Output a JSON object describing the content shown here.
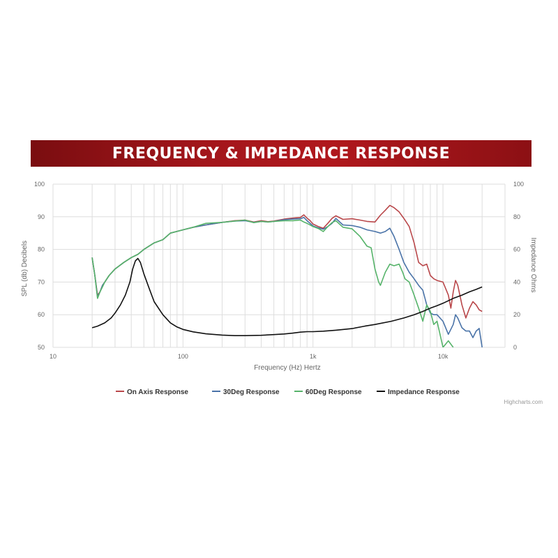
{
  "banner": {
    "title": "FREQUENCY & IMPEDANCE RESPONSE",
    "color": "#a3161b"
  },
  "chart_data": {
    "type": "line",
    "xlabel": "Frequency (Hz) Hertz",
    "ylabel": "SPL (db) Decibels",
    "ylabel_right": "Impedance Ohms",
    "x_scale": "log",
    "xlim": [
      10,
      30000
    ],
    "ylim": [
      50,
      100
    ],
    "ylim_right": [
      0,
      100
    ],
    "x_ticks": [
      {
        "value": 10,
        "label": "10"
      },
      {
        "value": 100,
        "label": "100"
      },
      {
        "value": 1000,
        "label": "1k"
      },
      {
        "value": 10000,
        "label": "10k"
      }
    ],
    "y_ticks": [
      50,
      60,
      70,
      80,
      90,
      100
    ],
    "y_ticks_right": [
      0,
      20,
      40,
      60,
      80,
      100
    ],
    "grid": true,
    "legend_position": "bottom",
    "credit": "Highcharts.com",
    "series": [
      {
        "name": "On Axis Response",
        "color": "#b9474a",
        "axis": "left",
        "points": [
          [
            20,
            77.5
          ],
          [
            21,
            72
          ],
          [
            22,
            66
          ],
          [
            23,
            67
          ],
          [
            24,
            69
          ],
          [
            25,
            70
          ],
          [
            27,
            72
          ],
          [
            30,
            74
          ],
          [
            35,
            76
          ],
          [
            40,
            77.5
          ],
          [
            45,
            78.5
          ],
          [
            50,
            80
          ],
          [
            60,
            82
          ],
          [
            70,
            83
          ],
          [
            80,
            85
          ],
          [
            100,
            86
          ],
          [
            120,
            86.8
          ],
          [
            150,
            87.5
          ],
          [
            200,
            88.3
          ],
          [
            250,
            88.8
          ],
          [
            300,
            89
          ],
          [
            350,
            88.4
          ],
          [
            400,
            88.8
          ],
          [
            450,
            88.5
          ],
          [
            500,
            88.7
          ],
          [
            600,
            89.3
          ],
          [
            700,
            89.6
          ],
          [
            800,
            89.8
          ],
          [
            850,
            90.6
          ],
          [
            900,
            89.6
          ],
          [
            950,
            88.8
          ],
          [
            1000,
            87.8
          ],
          [
            1100,
            87
          ],
          [
            1200,
            86.5
          ],
          [
            1300,
            88
          ],
          [
            1400,
            89.5
          ],
          [
            1500,
            90.3
          ],
          [
            1700,
            89.2
          ],
          [
            2000,
            89.4
          ],
          [
            2300,
            89
          ],
          [
            2600,
            88.6
          ],
          [
            3000,
            88.4
          ],
          [
            3300,
            90.5
          ],
          [
            3600,
            92
          ],
          [
            3900,
            93.5
          ],
          [
            4200,
            92.8
          ],
          [
            4600,
            91.5
          ],
          [
            5000,
            89.5
          ],
          [
            5500,
            87
          ],
          [
            6000,
            82
          ],
          [
            6500,
            76
          ],
          [
            7000,
            75
          ],
          [
            7500,
            75.5
          ],
          [
            8000,
            72
          ],
          [
            8500,
            71
          ],
          [
            9000,
            70.5
          ],
          [
            10000,
            70
          ],
          [
            11000,
            66
          ],
          [
            11500,
            62
          ],
          [
            12000,
            67
          ],
          [
            12500,
            70.5
          ],
          [
            13000,
            69
          ],
          [
            14000,
            63
          ],
          [
            15000,
            59
          ],
          [
            16000,
            62
          ],
          [
            17000,
            64
          ],
          [
            18000,
            63
          ],
          [
            19000,
            61.5
          ],
          [
            20000,
            61
          ]
        ]
      },
      {
        "name": "30Deg Response",
        "color": "#4a73a8",
        "axis": "left",
        "points": [
          [
            20,
            77.5
          ],
          [
            21,
            72
          ],
          [
            22,
            65.5
          ],
          [
            23,
            67
          ],
          [
            24,
            69
          ],
          [
            25,
            70
          ],
          [
            27,
            72
          ],
          [
            30,
            74
          ],
          [
            35,
            76
          ],
          [
            40,
            77.5
          ],
          [
            45,
            78.5
          ],
          [
            50,
            80
          ],
          [
            60,
            82
          ],
          [
            70,
            83
          ],
          [
            80,
            85
          ],
          [
            100,
            86
          ],
          [
            120,
            86.8
          ],
          [
            150,
            87.5
          ],
          [
            200,
            88.3
          ],
          [
            250,
            88.7
          ],
          [
            300,
            88.8
          ],
          [
            350,
            88.3
          ],
          [
            400,
            88.6
          ],
          [
            450,
            88.4
          ],
          [
            500,
            88.6
          ],
          [
            600,
            89.1
          ],
          [
            700,
            89.3
          ],
          [
            800,
            89.4
          ],
          [
            850,
            89.8
          ],
          [
            900,
            88.8
          ],
          [
            1000,
            87.2
          ],
          [
            1100,
            86.6
          ],
          [
            1200,
            86.2
          ],
          [
            1300,
            87
          ],
          [
            1400,
            88
          ],
          [
            1500,
            89.5
          ],
          [
            1700,
            87.5
          ],
          [
            2000,
            87.3
          ],
          [
            2300,
            86.8
          ],
          [
            2600,
            86
          ],
          [
            3000,
            85.5
          ],
          [
            3300,
            85
          ],
          [
            3600,
            85.5
          ],
          [
            3900,
            86.5
          ],
          [
            4200,
            84
          ],
          [
            4600,
            80
          ],
          [
            5000,
            76
          ],
          [
            5500,
            73
          ],
          [
            6000,
            71
          ],
          [
            6500,
            69
          ],
          [
            7000,
            67.5
          ],
          [
            7500,
            63
          ],
          [
            8000,
            60.5
          ],
          [
            8500,
            60
          ],
          [
            9000,
            60
          ],
          [
            10000,
            58
          ],
          [
            11000,
            54
          ],
          [
            12000,
            57
          ],
          [
            12500,
            60
          ],
          [
            13000,
            59
          ],
          [
            14000,
            56
          ],
          [
            15000,
            55
          ],
          [
            16000,
            55
          ],
          [
            17000,
            53
          ],
          [
            18000,
            55
          ],
          [
            19000,
            55.8
          ],
          [
            20000,
            50
          ]
        ]
      },
      {
        "name": "60Deg Response",
        "color": "#56b36a",
        "axis": "left",
        "points": [
          [
            20,
            77.5
          ],
          [
            21,
            72
          ],
          [
            22,
            65
          ],
          [
            23,
            67
          ],
          [
            24,
            68.5
          ],
          [
            25,
            70
          ],
          [
            27,
            72
          ],
          [
            30,
            74
          ],
          [
            35,
            76
          ],
          [
            40,
            77.5
          ],
          [
            45,
            78.5
          ],
          [
            50,
            80
          ],
          [
            60,
            82
          ],
          [
            70,
            83
          ],
          [
            80,
            85
          ],
          [
            100,
            86
          ],
          [
            120,
            86.8
          ],
          [
            150,
            88
          ],
          [
            200,
            88.3
          ],
          [
            250,
            88.7
          ],
          [
            300,
            89
          ],
          [
            350,
            88.2
          ],
          [
            400,
            88.6
          ],
          [
            450,
            88.4
          ],
          [
            500,
            88.6
          ],
          [
            600,
            88.8
          ],
          [
            700,
            88.8
          ],
          [
            800,
            89
          ],
          [
            850,
            88.4
          ],
          [
            900,
            88
          ],
          [
            1000,
            87
          ],
          [
            1100,
            86.4
          ],
          [
            1200,
            85.5
          ],
          [
            1300,
            87
          ],
          [
            1400,
            88.2
          ],
          [
            1500,
            88.8
          ],
          [
            1700,
            86.8
          ],
          [
            2000,
            86.3
          ],
          [
            2300,
            84
          ],
          [
            2600,
            81
          ],
          [
            2800,
            80.5
          ],
          [
            3000,
            74
          ],
          [
            3200,
            70
          ],
          [
            3300,
            69
          ],
          [
            3600,
            73
          ],
          [
            3900,
            75.5
          ],
          [
            4200,
            75
          ],
          [
            4600,
            75.5
          ],
          [
            4900,
            73
          ],
          [
            5100,
            71
          ],
          [
            5500,
            70
          ],
          [
            6000,
            66
          ],
          [
            6500,
            62
          ],
          [
            7000,
            58
          ],
          [
            7500,
            63
          ],
          [
            8000,
            61
          ],
          [
            8500,
            57
          ],
          [
            9000,
            58
          ],
          [
            10000,
            50
          ],
          [
            11000,
            52
          ],
          [
            12000,
            50
          ]
        ]
      },
      {
        "name": "Impedance Response",
        "color": "#111111",
        "axis": "right",
        "points": [
          [
            20,
            12
          ],
          [
            22,
            13
          ],
          [
            25,
            15
          ],
          [
            28,
            18
          ],
          [
            30,
            21
          ],
          [
            33,
            26
          ],
          [
            36,
            32
          ],
          [
            39,
            40
          ],
          [
            41,
            48
          ],
          [
            43,
            53
          ],
          [
            45,
            54.5
          ],
          [
            47,
            52
          ],
          [
            50,
            45
          ],
          [
            55,
            36
          ],
          [
            60,
            28
          ],
          [
            70,
            20
          ],
          [
            80,
            15
          ],
          [
            90,
            12.5
          ],
          [
            100,
            11
          ],
          [
            120,
            9.5
          ],
          [
            150,
            8.3
          ],
          [
            200,
            7.5
          ],
          [
            250,
            7.2
          ],
          [
            300,
            7.2
          ],
          [
            400,
            7.4
          ],
          [
            500,
            7.8
          ],
          [
            600,
            8.2
          ],
          [
            700,
            8.7
          ],
          [
            800,
            9.3
          ],
          [
            900,
            9.6
          ],
          [
            1000,
            9.6
          ],
          [
            1200,
            9.9
          ],
          [
            1500,
            10.5
          ],
          [
            2000,
            11.5
          ],
          [
            2500,
            13
          ],
          [
            3000,
            14
          ],
          [
            4000,
            16
          ],
          [
            5000,
            18
          ],
          [
            6000,
            20
          ],
          [
            7000,
            22
          ],
          [
            8000,
            24
          ],
          [
            9000,
            25.5
          ],
          [
            10000,
            27
          ],
          [
            12000,
            30
          ],
          [
            14000,
            32
          ],
          [
            16000,
            34
          ],
          [
            18000,
            35.5
          ],
          [
            20000,
            37
          ]
        ]
      }
    ]
  }
}
